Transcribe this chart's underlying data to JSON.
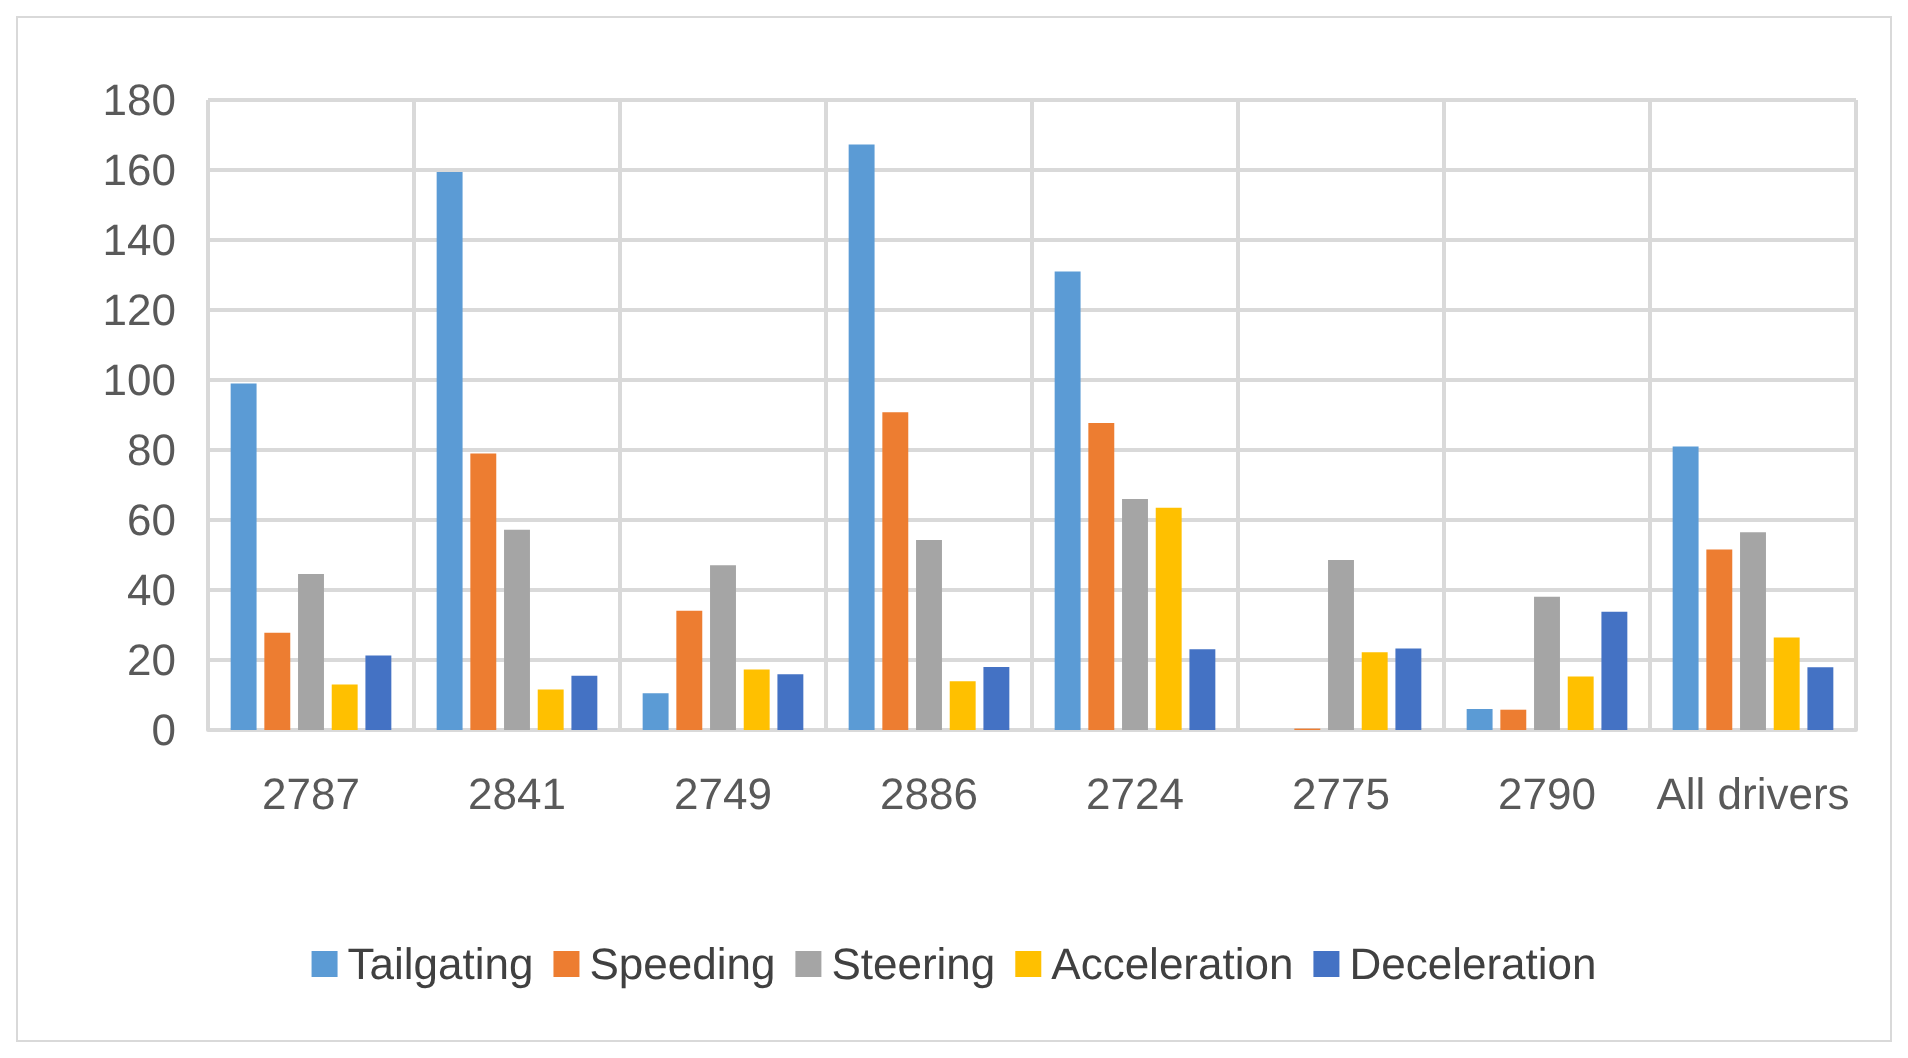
{
  "chart_data": {
    "type": "bar",
    "categories": [
      "2787",
      "2841",
      "2749",
      "2886",
      "2724",
      "2775",
      "2790",
      "All drivers"
    ],
    "series": [
      {
        "name": "Tailgating",
        "color": "#5b9bd5",
        "values": [
          99,
          159.4,
          10.5,
          167.3,
          131,
          0,
          6,
          81
        ]
      },
      {
        "name": "Speeding",
        "color": "#ed7d31",
        "values": [
          27.8,
          79,
          34.1,
          90.8,
          87.7,
          0.4,
          5.8,
          51.6
        ]
      },
      {
        "name": "Steering",
        "color": "#a5a5a5",
        "values": [
          44.6,
          57.2,
          47.1,
          54.3,
          66,
          48.6,
          38.1,
          56.5
        ]
      },
      {
        "name": "Acceleration",
        "color": "#ffc000",
        "values": [
          13,
          11.6,
          17.3,
          13.9,
          63.5,
          22.2,
          15.3,
          26.4
        ]
      },
      {
        "name": "Deceleration",
        "color": "#4472c4",
        "values": [
          21.3,
          15.5,
          15.9,
          18,
          23.1,
          23.3,
          33.8,
          17.9
        ]
      }
    ],
    "ylim": [
      0,
      180
    ],
    "yticks": [
      0,
      20,
      40,
      60,
      80,
      100,
      120,
      140,
      160,
      180
    ],
    "grid": true,
    "legend": "bottom"
  }
}
